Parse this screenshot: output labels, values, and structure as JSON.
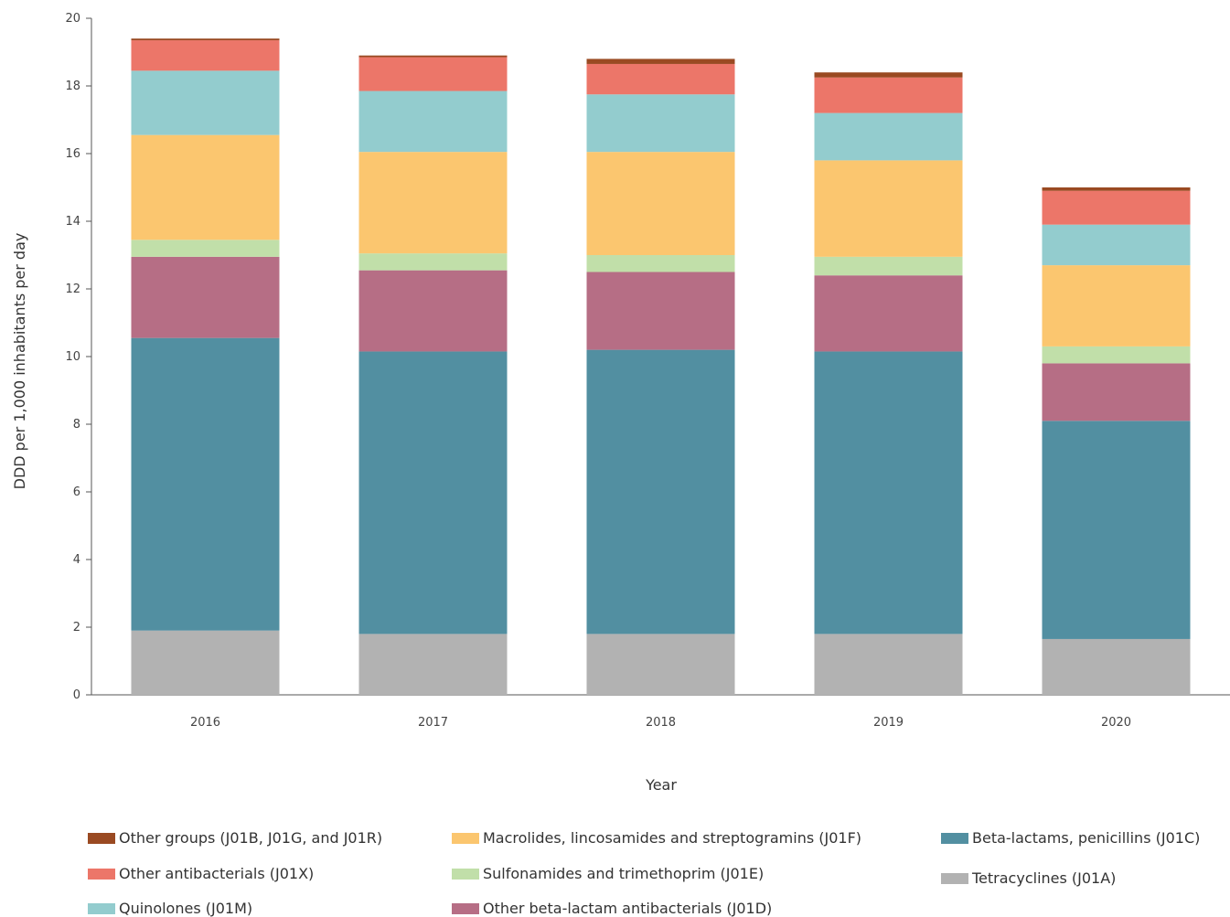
{
  "chart_data": {
    "type": "bar",
    "stacked": true,
    "xlabel": "Year",
    "ylabel": "DDD per 1,000 inhabitants per day",
    "ylim": [
      0,
      20
    ],
    "yticks": [
      "0",
      "2",
      "4",
      "6",
      "8",
      "10",
      "12",
      "14",
      "16",
      "18",
      "20"
    ],
    "categories": [
      "2016",
      "2017",
      "2018",
      "2019",
      "2020"
    ],
    "grid": false,
    "legend_position": "bottom",
    "series": [
      {
        "name": "Tetracyclines (J01A)",
        "color": "#b2b2b2",
        "values": [
          1.9,
          1.8,
          1.8,
          1.8,
          1.65
        ]
      },
      {
        "name": "Beta-lactams, penicillins (J01C)",
        "color": "#528fa1",
        "values": [
          8.65,
          8.35,
          8.4,
          8.35,
          6.45
        ]
      },
      {
        "name": "Other beta-lactam antibacterials (J01D)",
        "color": "#b66e85",
        "values": [
          2.4,
          2.4,
          2.3,
          2.25,
          1.7
        ]
      },
      {
        "name": "Sulfonamides and trimethoprim (J01E)",
        "color": "#c1dfa9",
        "values": [
          0.5,
          0.5,
          0.5,
          0.55,
          0.5
        ]
      },
      {
        "name": "Macrolides, lincosamides and streptogramins (J01F)",
        "color": "#fbc66f",
        "values": [
          3.1,
          3.0,
          3.05,
          2.85,
          2.4
        ]
      },
      {
        "name": "Quinolones (J01M)",
        "color": "#93ccce",
        "values": [
          1.9,
          1.8,
          1.7,
          1.4,
          1.2
        ]
      },
      {
        "name": "Other antibacterials (J01X)",
        "color": "#ec7669",
        "values": [
          0.9,
          1.0,
          0.9,
          1.05,
          1.0
        ]
      },
      {
        "name": "Other groups (J01B, J01G, and J01R)",
        "color": "#9a4a22",
        "values": [
          0.05,
          0.05,
          0.15,
          0.15,
          0.1
        ]
      }
    ]
  },
  "legend": {
    "col1": [
      "Other groups (J01B, J01G, and J01R)",
      "Other antibacterials (J01X)",
      "Quinolones (J01M)"
    ],
    "col2": [
      "Macrolides, lincosamides and streptogramins (J01F)",
      "Sulfonamides and trimethoprim (J01E)",
      "Other beta-lactam antibacterials (J01D)"
    ],
    "col3": [
      "Beta-lactams, penicillins (J01C)",
      "Tetracyclines (J01A)"
    ]
  }
}
